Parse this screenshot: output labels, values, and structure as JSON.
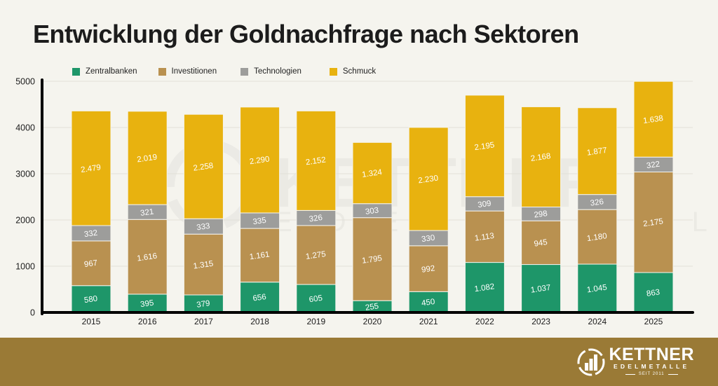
{
  "chart_data": {
    "type": "bar",
    "stacked": true,
    "title": "Entwicklung der Goldnachfrage nach Sektoren",
    "xlabel": "",
    "ylabel": "",
    "ylim": [
      0,
      5000
    ],
    "yticks": [
      0,
      1000,
      2000,
      3000,
      4000,
      5000
    ],
    "grid": true,
    "legend_position": "top",
    "categories": [
      "2015",
      "2016",
      "2017",
      "2018",
      "2019",
      "2020",
      "2021",
      "2022",
      "2023",
      "2024",
      "2025"
    ],
    "series": [
      {
        "name": "Zentralbanken",
        "color": "#1e9669",
        "values": [
          580,
          395,
          379,
          656,
          605,
          255,
          450,
          1082,
          1037,
          1045,
          863
        ],
        "labels": [
          "580",
          "395",
          "379",
          "656",
          "605",
          "255",
          "450",
          "1.082",
          "1.037",
          "1.045",
          "863"
        ]
      },
      {
        "name": "Investitionen",
        "color": "#b99150",
        "values": [
          967,
          1616,
          1315,
          1161,
          1275,
          1795,
          992,
          1113,
          945,
          1180,
          2175
        ],
        "labels": [
          "967",
          "1.616",
          "1.315",
          "1.161",
          "1.275",
          "1.795",
          "992",
          "1.113",
          "945",
          "1.180",
          "2.175"
        ]
      },
      {
        "name": "Technologien",
        "color": "#9d9d9b",
        "values": [
          332,
          321,
          333,
          335,
          326,
          303,
          330,
          309,
          298,
          326,
          322
        ],
        "labels": [
          "332",
          "321",
          "333",
          "335",
          "326",
          "303",
          "330",
          "309",
          "298",
          "326",
          "322"
        ]
      },
      {
        "name": "Schmuck",
        "color": "#e8b20f",
        "values": [
          2479,
          2019,
          2258,
          2290,
          2152,
          1324,
          2230,
          2195,
          2168,
          1877,
          1638
        ],
        "labels": [
          "2.479",
          "2.019",
          "2.258",
          "2.290",
          "2.152",
          "1.324",
          "2.230",
          "2.195",
          "2.168",
          "1.877",
          "1.638"
        ]
      }
    ]
  },
  "legend": [
    {
      "label": "Zentralbanken",
      "color": "#1e9669"
    },
    {
      "label": "Investitionen",
      "color": "#b99150"
    },
    {
      "label": "Technologien",
      "color": "#9d9d9b"
    },
    {
      "label": "Schmuck",
      "color": "#e8b20f"
    }
  ],
  "footer": {
    "background": "#9a7a36",
    "logo_name": "KETTNER",
    "logo_sub": "EDELMETALLE",
    "logo_since": "SEIT 2011"
  }
}
